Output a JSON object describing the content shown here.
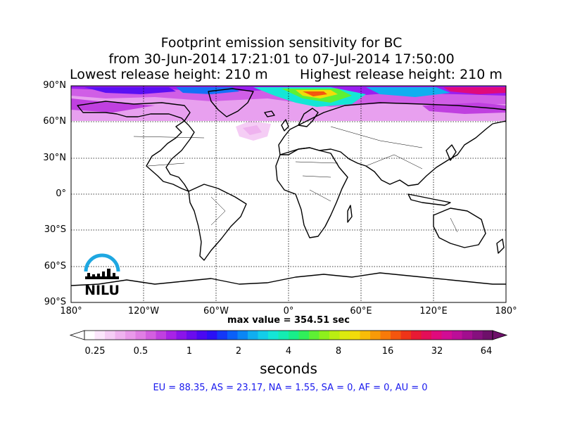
{
  "title": {
    "line1": "Footprint emission sensitivity for BC",
    "line2": "from 30-Jun-2014 17:21:01 to 07-Jul-2014 17:50:00",
    "lowest": "Lowest release height: 210 m",
    "highest": "Highest release height: 210 m"
  },
  "axes": {
    "lat_labels": [
      "90°N",
      "60°N",
      "30°N",
      "0°",
      "30°S",
      "60°S",
      "90°S"
    ],
    "lon_labels": [
      "180°",
      "120°W",
      "60°W",
      "0°",
      "60°E",
      "120°E",
      "180°"
    ]
  },
  "max_value": "max value = 354.51 sec",
  "colorbar": {
    "ticks": [
      "0.25",
      "0.5",
      "1",
      "2",
      "4",
      "8",
      "16",
      "32",
      "64"
    ],
    "label": "seconds",
    "colors": [
      "#ffffff",
      "#fbe6fb",
      "#f5cdf5",
      "#efb2ef",
      "#e999ea",
      "#e07ee4",
      "#d35fe0",
      "#c040e0",
      "#a823e6",
      "#8a14ea",
      "#6a0cee",
      "#4a08f2",
      "#2a10f5",
      "#1438f7",
      "#0a60f8",
      "#0a86f5",
      "#10aef0",
      "#13cde9",
      "#14e6d6",
      "#14ecb2",
      "#18ee8a",
      "#30ef5a",
      "#5ef034",
      "#8ef01c",
      "#baee12",
      "#dcea0e",
      "#f2dc0a",
      "#f8bc08",
      "#f89a08",
      "#f87a0a",
      "#f4560e",
      "#ee3418",
      "#e81a34",
      "#e40e58",
      "#e00a7c",
      "#d20c94",
      "#bc0e98",
      "#a20e8e",
      "#86107e",
      "#6e106a"
    ],
    "extend_min": "#ffffff",
    "extend_max": "#6e106a"
  },
  "stats": "EU = 88.35,  AS = 23.17,  NA = 1.55,  SA = 0,  AF = 0,  AU = 0",
  "logo": {
    "text": "NILU",
    "arc_color": "#1ea7e1"
  }
}
